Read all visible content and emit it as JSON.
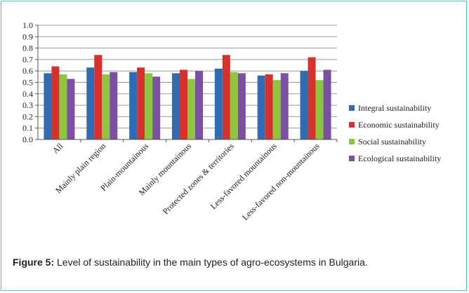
{
  "chart_data": {
    "type": "bar",
    "categories": [
      "All",
      "Mainly plain region",
      "Plain-mountainous",
      "Mainly mountainous",
      "Protected zones & territories",
      "Less-favored mountainous",
      "Less-favored non-mountainous"
    ],
    "series": [
      {
        "name": "Integral sustainability",
        "color": "#2e6db4",
        "values": [
          0.58,
          0.63,
          0.59,
          0.58,
          0.62,
          0.56,
          0.6
        ]
      },
      {
        "name": "Economic sustainability",
        "color": "#d8312b",
        "values": [
          0.64,
          0.74,
          0.63,
          0.61,
          0.74,
          0.57,
          0.72
        ]
      },
      {
        "name": "Social sustainability",
        "color": "#8dc63f",
        "values": [
          0.57,
          0.57,
          0.58,
          0.53,
          0.59,
          0.52,
          0.52
        ]
      },
      {
        "name": "Ecological sustainability",
        "color": "#7b4fa3",
        "values": [
          0.53,
          0.59,
          0.55,
          0.6,
          0.58,
          0.58,
          0.61
        ]
      }
    ],
    "yticks": [
      "0.0",
      "0.1",
      "0.2",
      "0.3",
      "0.4",
      "0.5",
      "0.6",
      "0.7",
      "0.8",
      "0.9",
      "1.0"
    ],
    "ylim": [
      0,
      1
    ],
    "grid": true,
    "legend_position": "right"
  },
  "caption": {
    "label": "Figure 5:",
    "text": " Level of sustainability in the main types of agro-ecosystems in Bulgaria."
  }
}
